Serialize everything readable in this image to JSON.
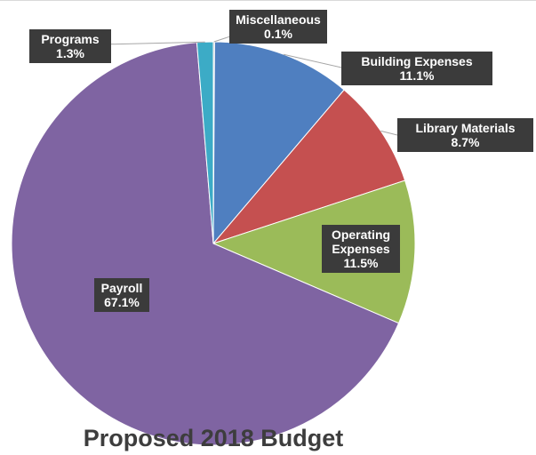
{
  "chart_data": {
    "type": "pie",
    "title": "Proposed 2018 Budget",
    "slices": [
      {
        "label": "Miscellaneous",
        "value": 0.1,
        "value_text": "0.1%",
        "color": "#a5a5a5"
      },
      {
        "label": "Building Expenses",
        "value": 11.1,
        "value_text": "11.1%",
        "color": "#4f7fc0"
      },
      {
        "label": "Library Materials",
        "value": 8.7,
        "value_text": "8.7%",
        "color": "#c55050"
      },
      {
        "label": "Operating Expenses",
        "value": 11.5,
        "value_text": "11.5%",
        "color": "#9bbb59"
      },
      {
        "label": "Payroll",
        "value": 67.1,
        "value_text": "67.1%",
        "color": "#7f64a2"
      },
      {
        "label": "Programs",
        "value": 1.3,
        "value_text": "1.3%",
        "color": "#3cabc6"
      }
    ],
    "start_angle_deg": 0,
    "direction": "clockwise",
    "label_style": "dark callout boxes",
    "legend": "none"
  }
}
